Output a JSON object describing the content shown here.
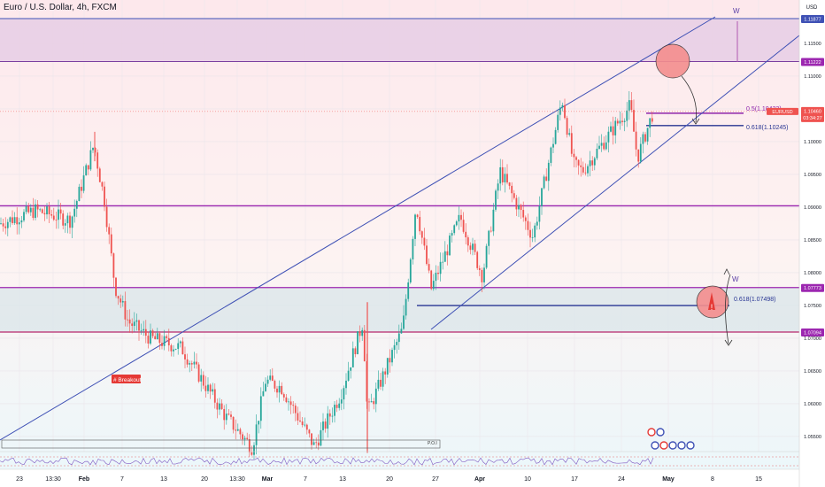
{
  "chart_title": "Euro / U.S. Dollar, 4h, FXCM",
  "currency_label": "USD",
  "colors": {
    "up": "#26a69a",
    "down": "#ef5350",
    "purple_line": "#9c27b0",
    "blue_line": "#3f51b5",
    "zone_top": "#e8cfe6",
    "zone_mid": "#d9e6ea",
    "price_tag": "#ef5350",
    "marker": "#f48e8e"
  },
  "price_axis": {
    "ticks": [
      "1.11500",
      "1.11000",
      "1.10500",
      "1.10000",
      "1.09500",
      "1.09000",
      "1.08500",
      "1.08000",
      "1.07500",
      "1.07000",
      "1.06500",
      "1.06000",
      "1.05500"
    ],
    "tick_values": [
      1.115,
      1.11,
      1.105,
      1.1,
      1.095,
      1.09,
      1.085,
      1.08,
      1.075,
      1.07,
      1.065,
      1.06,
      1.055
    ],
    "level_tags": [
      {
        "text": "1.11877",
        "value": 1.11877
      },
      {
        "text": "1.11222",
        "value": 1.11222
      },
      {
        "text": "1.07773",
        "value": 1.07773
      },
      {
        "text": "1.07094",
        "value": 1.07094
      }
    ],
    "current_symbol": "EURUSD",
    "current_price": "1.10460",
    "countdown": "03:34:27"
  },
  "time_axis": [
    "23",
    "13:30",
    "Feb",
    "7",
    "13",
    "20",
    "13:30",
    "Mar",
    "7",
    "13",
    "20",
    "27",
    "Apr",
    "10",
    "17",
    "24",
    "May",
    "8",
    "15"
  ],
  "annotations": {
    "fib_upper_1": "0.5(1.10433)",
    "fib_upper_2": "0.618(1.10245)",
    "fib_lower": "0.618(1.07498)",
    "wave_label_top": "W",
    "wave_label_bottom": "W",
    "breakout_label": "# Breakout",
    "poi_label": "P.O.I"
  },
  "chart_data": {
    "type": "candlestick",
    "title": "Euro / U.S. Dollar, 4h, FXCM",
    "y_unit": "USD",
    "ylim": [
      1.0505,
      1.1218
    ],
    "horizontal_levels": [
      1.11877,
      1.11222,
      1.0902,
      1.07773,
      1.07094
    ],
    "zones": [
      {
        "from": 1.11222,
        "to": 1.11877
      },
      {
        "from": 1.07094,
        "to": 1.07773
      }
    ],
    "fib_levels": [
      {
        "label": "0.5",
        "value": 1.10433
      },
      {
        "label": "0.618",
        "value": 1.10245
      },
      {
        "label": "0.618",
        "value": 1.07498
      }
    ],
    "close_path": [
      [
        "23",
        1.0875
      ],
      [
        "Jan 27",
        1.0895
      ],
      [
        "Jan 31",
        1.088
      ],
      [
        "Feb 2",
        1.0995
      ],
      [
        "Feb 3",
        1.091
      ],
      [
        "Feb 6",
        1.0778
      ],
      [
        "Feb 10",
        1.0725
      ],
      [
        "Feb 15",
        1.07
      ],
      [
        "Feb 20",
        1.0685
      ],
      [
        "Feb 24",
        1.058
      ],
      [
        "Feb 27",
        1.0533
      ],
      [
        "Mar 1",
        1.0635
      ],
      [
        "Mar 3",
        1.0625
      ],
      [
        "Mar 7",
        1.0535
      ],
      [
        "Mar 10",
        1.0615
      ],
      [
        "Mar 14",
        1.0725
      ],
      [
        "Mar 15",
        1.0585
      ],
      [
        "Mar 20",
        1.0715
      ],
      [
        "Mar 23",
        1.0905
      ],
      [
        "Mar 27",
        1.0775
      ],
      [
        "Mar 31",
        1.0885
      ],
      [
        "Apr 3",
        1.0795
      ],
      [
        "Apr 5",
        1.0955
      ],
      [
        "Apr 10",
        1.0855
      ],
      [
        "Apr 14",
        1.1065
      ],
      [
        "Apr 17",
        1.0965
      ],
      [
        "Apr 20",
        1.0955
      ],
      [
        "Apr 24",
        1.1055
      ],
      [
        "Apr 26",
        1.0975
      ],
      [
        "Apr 28",
        1.1046
      ]
    ],
    "current_value": 1.1046
  }
}
